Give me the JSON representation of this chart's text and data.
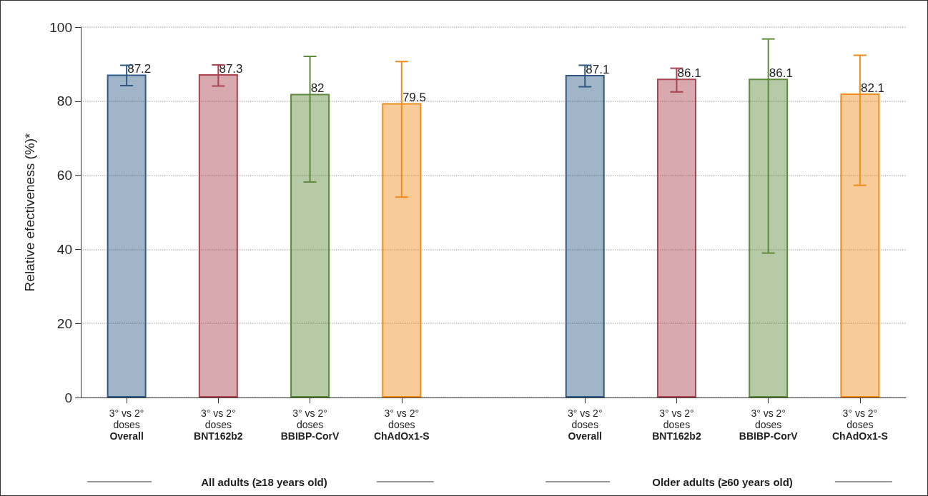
{
  "chart_data": {
    "type": "bar",
    "ylabel": "Relative efectiveness (%)*",
    "categories": [
      "3° vs 2°\ndoses\nOverall",
      "3° vs 2°\ndoses\nBNT162b2",
      "3° vs 2°\ndoses\nBBIBP-CorV",
      "3° vs 2°\ndoses\nChAdOx1-S",
      null,
      "3° vs 2°\ndoses\nOverall",
      "3° vs 2°\ndoses\nBNT162b2",
      "3° vs 2°\ndoses\nBBIBP-CorV",
      "3° vs 2°\ndoses\nChAdOx1-S"
    ],
    "values": [
      87.2,
      87.3,
      82,
      79.5,
      null,
      87.1,
      86.1,
      86.1,
      82.1
    ],
    "colors": [
      "#2f5a85",
      "#a8434f",
      "#5e8a3c",
      "#ef8d1c",
      null,
      "#2f5a85",
      "#a8434f",
      "#5e8a3c",
      "#ef8d1c"
    ],
    "errors": [
      [
        84.2,
        89.7
      ],
      [
        84.1,
        89.8
      ],
      [
        58.2,
        92.1
      ],
      [
        54.1,
        90.7
      ],
      null,
      [
        83.9,
        89.7
      ],
      [
        82.5,
        88.9
      ],
      [
        39.0,
        96.8
      ],
      [
        57.3,
        92.4
      ]
    ],
    "data_labels": true,
    "ylim": [
      0,
      100
    ],
    "yticks": [
      0,
      20,
      40,
      60,
      80,
      100
    ],
    "grid": "y",
    "annotations": [
      "All adults (≥18 years old)",
      "Older adults (≥60 years old)"
    ]
  }
}
